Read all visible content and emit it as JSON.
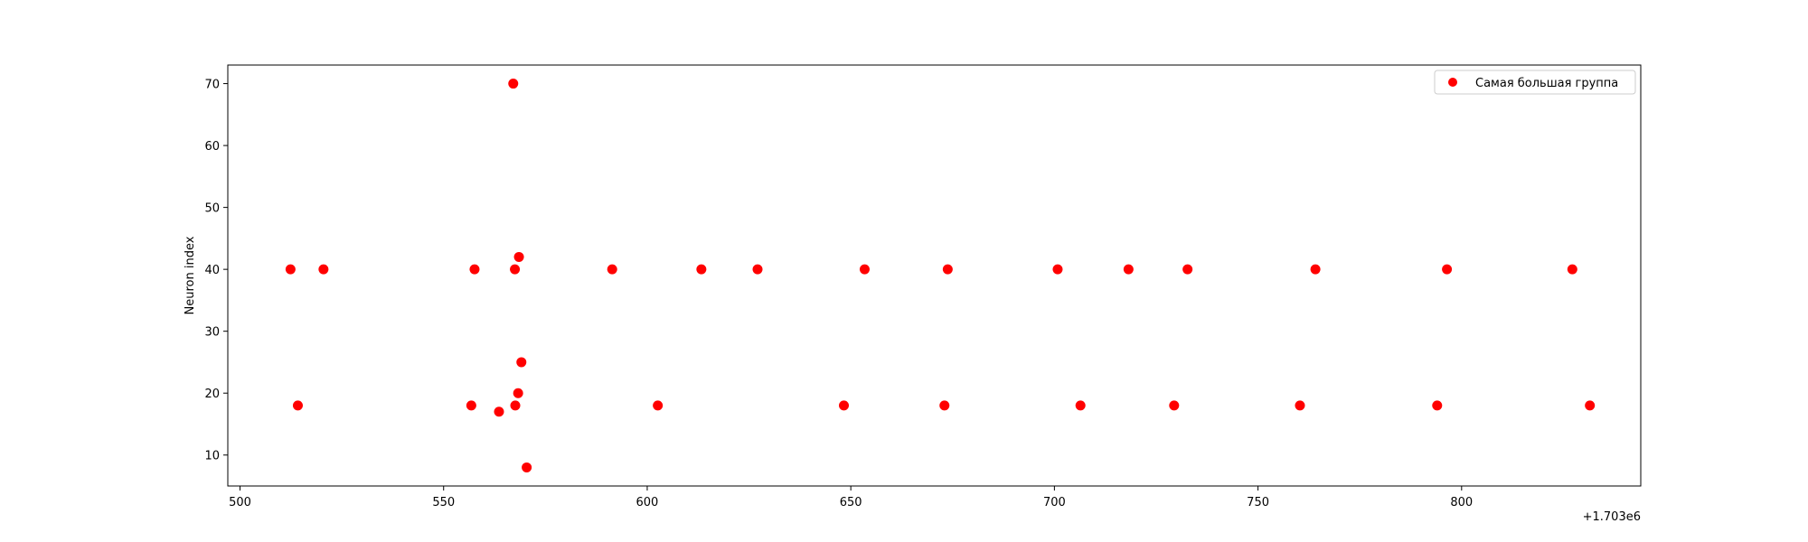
{
  "chart_data": {
    "type": "scatter",
    "title": "",
    "xlabel": "",
    "ylabel": "Neuron index",
    "x_offset_label": "+1.703e6",
    "xlim": [
      497,
      844
    ],
    "ylim": [
      5,
      73
    ],
    "xticks": [
      500,
      550,
      600,
      650,
      700,
      750,
      800
    ],
    "yticks": [
      10,
      20,
      30,
      40,
      50,
      60,
      70
    ],
    "grid": false,
    "legend_position": "top-right",
    "series": [
      {
        "name": "Самая большая группа",
        "color": "#ff0000",
        "points": [
          {
            "x": 512.4,
            "y": 40
          },
          {
            "x": 514.2,
            "y": 18
          },
          {
            "x": 520.5,
            "y": 40
          },
          {
            "x": 556.8,
            "y": 18
          },
          {
            "x": 557.6,
            "y": 40
          },
          {
            "x": 563.6,
            "y": 17
          },
          {
            "x": 567.1,
            "y": 70
          },
          {
            "x": 567.5,
            "y": 40
          },
          {
            "x": 567.6,
            "y": 18
          },
          {
            "x": 568.3,
            "y": 20
          },
          {
            "x": 568.5,
            "y": 42
          },
          {
            "x": 569.1,
            "y": 25
          },
          {
            "x": 570.4,
            "y": 8
          },
          {
            "x": 591.4,
            "y": 40
          },
          {
            "x": 602.6,
            "y": 18
          },
          {
            "x": 613.3,
            "y": 40
          },
          {
            "x": 627.1,
            "y": 40
          },
          {
            "x": 648.3,
            "y": 18
          },
          {
            "x": 653.4,
            "y": 40
          },
          {
            "x": 673.0,
            "y": 18
          },
          {
            "x": 673.8,
            "y": 40
          },
          {
            "x": 700.8,
            "y": 40
          },
          {
            "x": 706.4,
            "y": 18
          },
          {
            "x": 718.2,
            "y": 40
          },
          {
            "x": 729.4,
            "y": 18
          },
          {
            "x": 732.7,
            "y": 40
          },
          {
            "x": 760.3,
            "y": 18
          },
          {
            "x": 764.1,
            "y": 40
          },
          {
            "x": 794.0,
            "y": 18
          },
          {
            "x": 796.4,
            "y": 40
          },
          {
            "x": 827.2,
            "y": 40
          },
          {
            "x": 831.5,
            "y": 18
          }
        ]
      }
    ]
  }
}
